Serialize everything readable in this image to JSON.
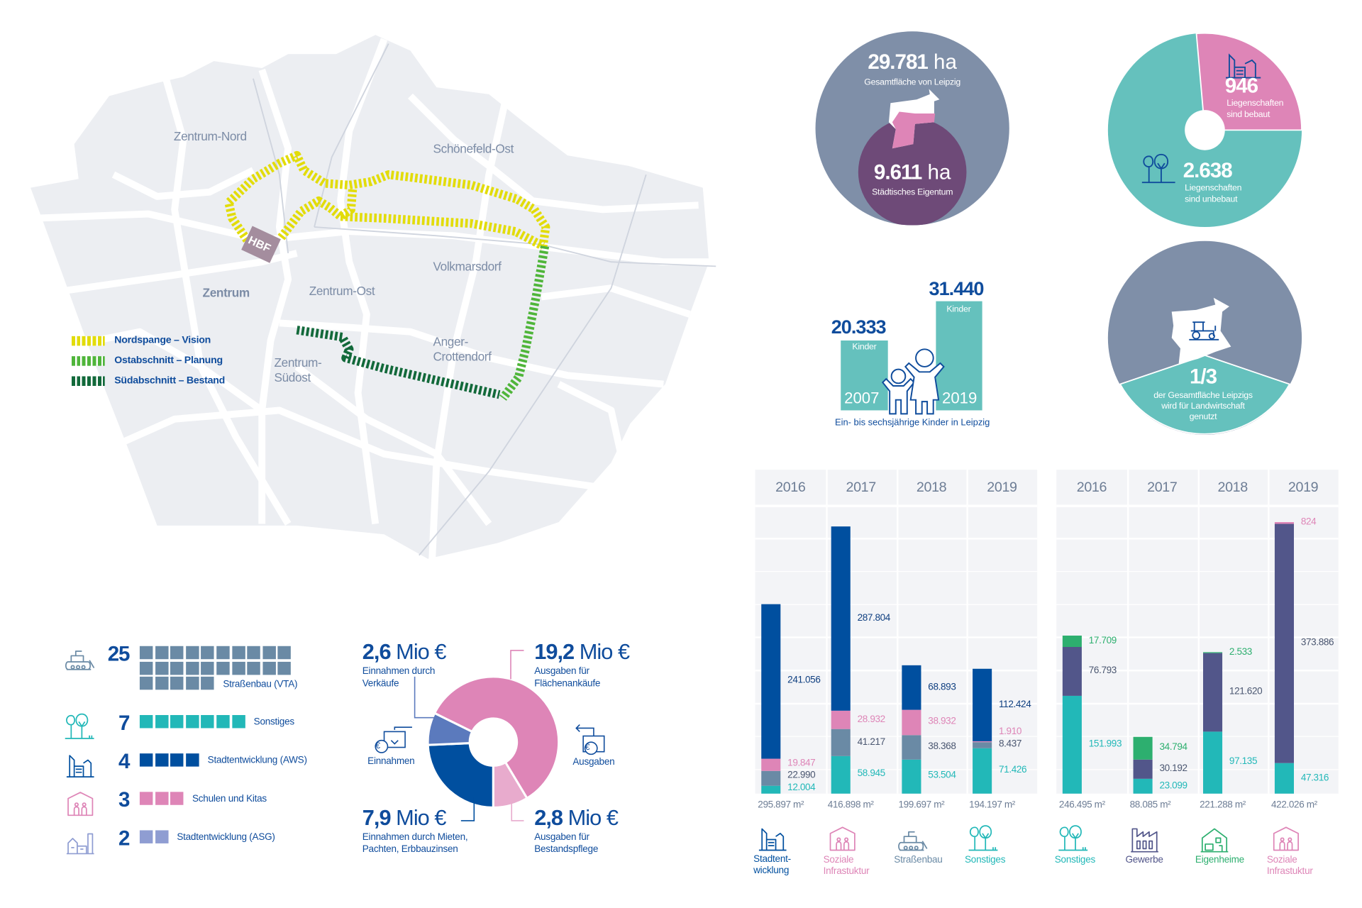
{
  "map": {
    "districts": {
      "zentrum_nord": "Zentrum-Nord",
      "schoenefeld_ost": "Schönefeld-Ost",
      "zentrum": "Zentrum",
      "zentrum_ost": "Zentrum-Ost",
      "volkmarsdorf": "Volkmarsdorf",
      "anger_1": "Anger-",
      "anger_2": "Crottendorf",
      "suedost_1": "Zentrum-",
      "suedost_2": "Südost"
    },
    "hbf": "HBF",
    "legend": [
      {
        "label": "Nordspange – Vision",
        "color": "#e2dc0a"
      },
      {
        "label": "Ostabschnitt – Planung",
        "color": "#4fb53a"
      },
      {
        "label": "Südabschnitt – Bestand",
        "color": "#12693a"
      }
    ]
  },
  "area": {
    "total_value": "29.781",
    "total_unit": "ha",
    "total_label": "Gesamtfläche von Leipzig",
    "city_value": "9.611",
    "city_unit": "ha",
    "city_label": "Städtisches Eigentum"
  },
  "properties": {
    "built_value": "946",
    "built_label_1": "Liegenschaften",
    "built_label_2": "sind bebaut",
    "unbuilt_value": "2.638",
    "unbuilt_label_1": "Liegenschaften",
    "unbuilt_label_2": "sind unbebaut"
  },
  "agriculture": {
    "value": "1/3",
    "line_1": "der Gesamtfläche Leipzigs",
    "line_2": "wird für Landwirtschaft",
    "line_3": "genutzt"
  },
  "children": {
    "value_2007": "20.333",
    "value_2019": "31.440",
    "unit": "Kinder",
    "year_2007": "2007",
    "year_2019": "2019",
    "caption": "Ein- bis sechsjährige Kinder in Leipzig"
  },
  "projects": [
    {
      "count": "25",
      "label": "Straßenbau (VTA)",
      "color": "#6a8aa5",
      "icon": "bulldozer-icon"
    },
    {
      "count": "7",
      "label": "Sonstiges",
      "color": "#22b8b8",
      "icon": "trees-icon"
    },
    {
      "count": "4",
      "label": "Stadtentwicklung (AWS)",
      "color": "#004f9f",
      "icon": "buildings-icon"
    },
    {
      "count": "3",
      "label": "Schulen und Kitas",
      "color": "#de85b7",
      "icon": "school-icon"
    },
    {
      "count": "2",
      "label": "Stadtentwicklung (ASG)",
      "color": "#8f9dd2",
      "icon": "town-icon"
    }
  ],
  "finance": {
    "income_label": "Einnahmen",
    "expense_label": "Ausgaben",
    "sales": {
      "value": "2,6",
      "unit": "Mio €",
      "line_1": "Einnahmen durch",
      "line_2": "Verkäufe",
      "amount": 2.6,
      "color": "#5b7abd"
    },
    "purchases": {
      "value": "19,2",
      "unit": "Mio €",
      "line_1": "Ausgaben für",
      "line_2": "Flächenankäufe",
      "amount": 19.2,
      "color": "#de85b7"
    },
    "rents": {
      "value": "7,9",
      "unit": "Mio €",
      "line_1": "Einnahmen durch Mieten,",
      "line_2": "Pachten, Erbbauzinsen",
      "amount": 7.9,
      "color": "#004f9f"
    },
    "maintenance": {
      "value": "2,8",
      "unit": "Mio €",
      "line_1": "Ausgaben für",
      "line_2": "Bestandspflege",
      "amount": 2.8,
      "color": "#e8abcd"
    }
  },
  "chart_data": [
    {
      "type": "bar",
      "stacked": true,
      "categories": [
        "2016",
        "2017",
        "2018",
        "2019"
      ],
      "unit": "m²",
      "series": [
        {
          "name": "Sonstiges",
          "color": "#22b8b8",
          "values": [
            12004,
            58945,
            53504,
            71426
          ]
        },
        {
          "name": "Straßenbau",
          "color": "#6a8aa5",
          "values": [
            22990,
            41217,
            38368,
            8437
          ]
        },
        {
          "name": "Soziale Infrastuktur",
          "color": "#de85b7",
          "values": [
            19847,
            28932,
            38932,
            1910
          ]
        },
        {
          "name": "Stadtent-wicklung",
          "color": "#004f9f",
          "values": [
            241056,
            287804,
            68893,
            112424
          ]
        }
      ],
      "legend": [
        {
          "label_1": "Stadtent-",
          "label_2": "wicklung",
          "color": "#004f9f",
          "icon": "buildings-icon"
        },
        {
          "label_1": "Soziale",
          "label_2": "Infrastuktur",
          "color": "#de85b7",
          "icon": "school-icon"
        },
        {
          "label_1": "Straßenbau",
          "label_2": "",
          "color": "#6a8aa5",
          "icon": "bulldozer-icon"
        },
        {
          "label_1": "Sonstiges",
          "label_2": "",
          "color": "#22b8b8",
          "icon": "trees-icon"
        }
      ],
      "ylim": [
        0,
        450000
      ]
    },
    {
      "type": "bar",
      "stacked": true,
      "categories": [
        "2016",
        "2017",
        "2018",
        "2019"
      ],
      "unit": "m²",
      "series": [
        {
          "name": "Sonstiges",
          "color": "#22b8b8",
          "values": [
            151993,
            23099,
            97135,
            47316
          ]
        },
        {
          "name": "Gewerbe",
          "color": "#52568a",
          "values": [
            76793,
            30192,
            121620,
            373886
          ]
        },
        {
          "name": "Eigenheime",
          "color": "#2daf6f",
          "values": [
            17709,
            34794,
            2533,
            0
          ]
        },
        {
          "name": "Soziale Infrastuktur",
          "color": "#de85b7",
          "values": [
            0,
            0,
            0,
            824
          ]
        }
      ],
      "legend": [
        {
          "label_1": "Sonstiges",
          "label_2": "",
          "color": "#22b8b8",
          "icon": "trees-icon"
        },
        {
          "label_1": "Gewerbe",
          "label_2": "",
          "color": "#52568a",
          "icon": "factory-icon"
        },
        {
          "label_1": "Eigenheime",
          "label_2": "",
          "color": "#2daf6f",
          "icon": "house-icon"
        },
        {
          "label_1": "Soziale",
          "label_2": "Infrastuktur",
          "color": "#de85b7",
          "icon": "school-icon"
        }
      ],
      "ylim": [
        0,
        450000
      ]
    }
  ]
}
